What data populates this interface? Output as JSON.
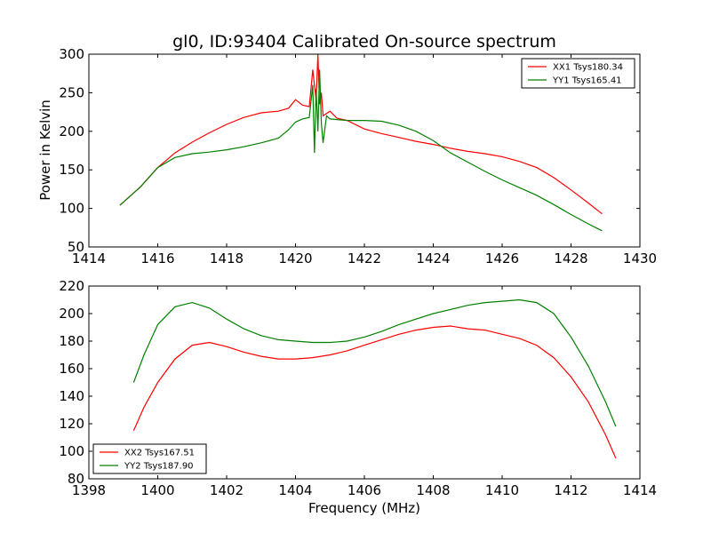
{
  "chart_data": [
    {
      "type": "line",
      "title": "gl0, ID:93404 Calibrated On-source spectrum",
      "xlabel": "",
      "ylabel": "Power in Kelvin",
      "xlim": [
        1414,
        1430
      ],
      "ylim": [
        50,
        300
      ],
      "xticks": [
        "1414",
        "1416",
        "1418",
        "1420",
        "1422",
        "1424",
        "1426",
        "1428",
        "1430"
      ],
      "yticks": [
        "50",
        "100",
        "150",
        "200",
        "250",
        "300"
      ],
      "legend_position": "top-right",
      "series": [
        {
          "name": "XX1 Tsys180.34",
          "color": "#ff0000",
          "x": [
            1414.9,
            1415.5,
            1416.0,
            1416.5,
            1417.0,
            1417.5,
            1418.0,
            1418.5,
            1419.0,
            1419.5,
            1419.8,
            1420.0,
            1420.2,
            1420.4,
            1420.5,
            1420.6,
            1420.65,
            1420.7,
            1420.75,
            1420.8,
            1421.0,
            1421.2,
            1421.5,
            1422.0,
            1422.5,
            1423.0,
            1423.5,
            1424.0,
            1424.5,
            1425.0,
            1425.5,
            1426.0,
            1426.5,
            1427.0,
            1427.5,
            1428.0,
            1428.5,
            1428.9
          ],
          "y": [
            104,
            128,
            153,
            172,
            186,
            198,
            209,
            218,
            224,
            226,
            230,
            241,
            234,
            232,
            280,
            240,
            300,
            235,
            250,
            220,
            226,
            217,
            214,
            203,
            197,
            192,
            187,
            183,
            178,
            174,
            171,
            167,
            161,
            153,
            140,
            124,
            107,
            93
          ]
        },
        {
          "name": "YY1 Tsys165.41",
          "color": "#008000",
          "x": [
            1414.9,
            1415.5,
            1416.0,
            1416.5,
            1417.0,
            1417.5,
            1418.0,
            1418.5,
            1419.0,
            1419.5,
            1419.8,
            1420.0,
            1420.2,
            1420.4,
            1420.5,
            1420.55,
            1420.6,
            1420.65,
            1420.7,
            1420.75,
            1420.8,
            1420.9,
            1421.0,
            1421.5,
            1422.0,
            1422.5,
            1423.0,
            1423.5,
            1424.0,
            1424.5,
            1425.0,
            1425.5,
            1426.0,
            1426.5,
            1427.0,
            1427.5,
            1428.0,
            1428.5,
            1428.9
          ],
          "y": [
            104,
            128,
            153,
            166,
            171,
            173,
            176,
            180,
            185,
            191,
            202,
            212,
            216,
            218,
            260,
            172,
            255,
            200,
            280,
            210,
            185,
            220,
            216,
            214,
            214,
            213,
            208,
            200,
            188,
            172,
            160,
            148,
            137,
            127,
            117,
            105,
            92,
            80,
            71
          ]
        }
      ]
    },
    {
      "type": "line",
      "title": "",
      "xlabel": "Frequency (MHz)",
      "ylabel": "",
      "xlim": [
        1398,
        1414
      ],
      "ylim": [
        80,
        220
      ],
      "xticks": [
        "1398",
        "1400",
        "1402",
        "1404",
        "1406",
        "1408",
        "1410",
        "1412",
        "1414"
      ],
      "yticks": [
        "80",
        "100",
        "120",
        "140",
        "160",
        "180",
        "200",
        "220"
      ],
      "legend_position": "bottom-left",
      "series": [
        {
          "name": "XX2 Tsys167.51",
          "color": "#ff0000",
          "x": [
            1399.3,
            1399.6,
            1400.0,
            1400.5,
            1401.0,
            1401.5,
            1402.0,
            1402.5,
            1403.0,
            1403.5,
            1404.0,
            1404.5,
            1405.0,
            1405.5,
            1406.0,
            1406.5,
            1407.0,
            1407.5,
            1408.0,
            1408.5,
            1409.0,
            1409.5,
            1410.0,
            1410.5,
            1411.0,
            1411.5,
            1412.0,
            1412.5,
            1413.0,
            1413.3
          ],
          "y": [
            115,
            132,
            150,
            167,
            177,
            179,
            176,
            172,
            169,
            167,
            167,
            168,
            170,
            173,
            177,
            181,
            185,
            188,
            190,
            191,
            189,
            188,
            185,
            182,
            177,
            168,
            154,
            136,
            112,
            95
          ]
        },
        {
          "name": "YY2 Tsys187.90",
          "color": "#008000",
          "x": [
            1399.3,
            1399.6,
            1400.0,
            1400.5,
            1401.0,
            1401.5,
            1402.0,
            1402.5,
            1403.0,
            1403.5,
            1404.0,
            1404.5,
            1405.0,
            1405.5,
            1406.0,
            1406.5,
            1407.0,
            1407.5,
            1408.0,
            1408.5,
            1409.0,
            1409.5,
            1410.0,
            1410.5,
            1411.0,
            1411.5,
            1412.0,
            1412.5,
            1413.0,
            1413.3
          ],
          "y": [
            150,
            170,
            192,
            205,
            208,
            204,
            196,
            189,
            184,
            181,
            180,
            179,
            179,
            180,
            183,
            187,
            192,
            196,
            200,
            203,
            206,
            208,
            209,
            210,
            208,
            200,
            183,
            162,
            136,
            118
          ]
        }
      ]
    }
  ]
}
